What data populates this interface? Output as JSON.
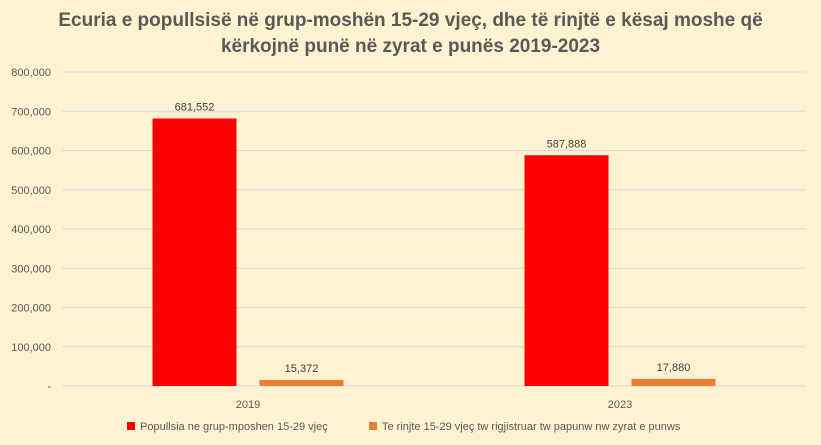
{
  "chart_data": {
    "type": "bar",
    "title_line1": "Ecuria e popullsisë në grup-moshën 15-29 vjeç, dhe të rinjtë e kësaj moshe që",
    "title_line2": "kërkojnë punë në zyrat e punës 2019-2023",
    "categories": [
      "2019",
      "2023"
    ],
    "series": [
      {
        "name": "Popullsia ne grup-mposhen 15-29 vjeç",
        "values": [
          681552,
          587888
        ],
        "labels": [
          "681,552",
          "587,888"
        ],
        "color": "#FF0000"
      },
      {
        "name": "Te rinjte 15-29 vjeç tw rigjistruar tw papunw nw zyrat e punws",
        "values": [
          15372,
          17880
        ],
        "labels": [
          "15,372",
          "17,880"
        ],
        "color": "#ED7D31"
      }
    ],
    "ylim": [
      0,
      800000
    ],
    "yticks": [
      0,
      100000,
      200000,
      300000,
      400000,
      500000,
      600000,
      700000,
      800000
    ],
    "ytick_labels": [
      "-",
      "100,000",
      "200,000",
      "300,000",
      "400,000",
      "500,000",
      "600,000",
      "700,000",
      "800,000"
    ],
    "grid": true,
    "legend_position": "bottom",
    "xlabel": "",
    "ylabel": ""
  },
  "colors": {
    "background": "#FEF3D0",
    "gridline": "#D9D9D9",
    "text": "#595959"
  }
}
